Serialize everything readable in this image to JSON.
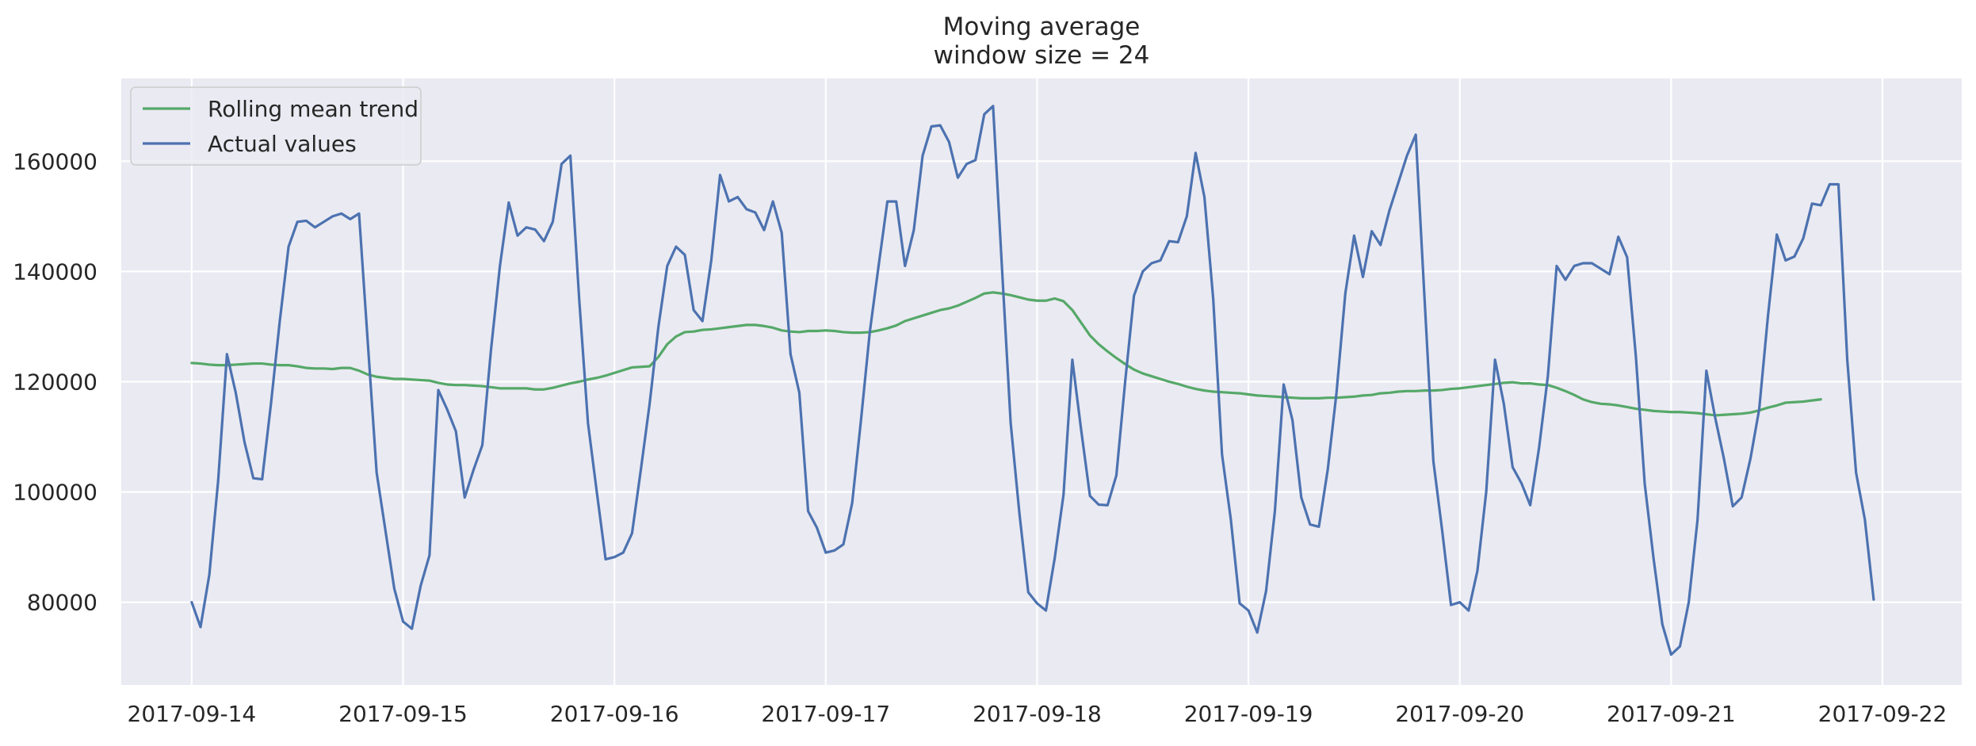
{
  "chart_data": {
    "type": "line",
    "title": "Moving average\n window size = 24",
    "title_lines": [
      "Moving average",
      "window size = 24"
    ],
    "xlabel": "",
    "ylabel": "",
    "x_start": "2017-09-14T00:00",
    "x_step_hours": 1,
    "x_ticks": [
      "2017-09-14",
      "2017-09-15",
      "2017-09-16",
      "2017-09-17",
      "2017-09-18",
      "2017-09-19",
      "2017-09-20",
      "2017-09-21",
      "2017-09-22"
    ],
    "xlim": [
      "2017-09-13T16:00",
      "2017-09-22T09:00"
    ],
    "y_ticks": [
      80000,
      100000,
      120000,
      140000,
      160000
    ],
    "y_tick_labels": [
      "80000",
      "100000",
      "120000",
      "140000",
      "160000"
    ],
    "ylim": [
      65000,
      175000
    ],
    "grid": true,
    "legend_position": "top-left",
    "background": "#eaeaf2",
    "series": [
      {
        "name": "Rolling mean trend",
        "color": "#55a868",
        "values": [
          123400,
          123300,
          123100,
          123000,
          123000,
          123100,
          123200,
          123300,
          123300,
          123100,
          123000,
          123000,
          122800,
          122500,
          122400,
          122400,
          122300,
          122500,
          122500,
          122000,
          121300,
          120900,
          120700,
          120500,
          120500,
          120400,
          120300,
          120200,
          119800,
          119500,
          119400,
          119400,
          119300,
          119200,
          119000,
          118800,
          118800,
          118800,
          118800,
          118600,
          118600,
          118900,
          119300,
          119700,
          120000,
          120400,
          120700,
          121100,
          121600,
          122100,
          122600,
          122700,
          122800,
          124500,
          126800,
          128200,
          129000,
          129100,
          129400,
          129500,
          129700,
          129900,
          130100,
          130300,
          130300,
          130100,
          129800,
          129300,
          129100,
          129000,
          129200,
          129200,
          129300,
          129200,
          129000,
          128900,
          128900,
          129000,
          129300,
          129700,
          130200,
          131000,
          131500,
          132000,
          132500,
          133000,
          133300,
          133800,
          134500,
          135200,
          136000,
          136200,
          136000,
          135700,
          135300,
          134900,
          134700,
          134700,
          135100,
          134600,
          133000,
          130700,
          128400,
          126800,
          125500,
          124300,
          123200,
          122200,
          121500,
          121000,
          120500,
          120000,
          119600,
          119100,
          118700,
          118400,
          118200,
          118100,
          118000,
          117900,
          117700,
          117500,
          117400,
          117300,
          117200,
          117100,
          117000,
          117000,
          117000,
          117100,
          117100,
          117200,
          117300,
          117500,
          117600,
          117900,
          118000,
          118200,
          118300,
          118300,
          118400,
          118400,
          118500,
          118700,
          118800,
          119000,
          119200,
          119400,
          119600,
          119800,
          119900,
          119700,
          119700,
          119500,
          119400,
          118900,
          118300,
          117600,
          116800,
          116300,
          116000,
          115900,
          115700,
          115400,
          115100,
          114900,
          114700,
          114600,
          114500,
          114500,
          114400,
          114300,
          114100,
          113900,
          114000,
          114100,
          114200,
          114400,
          114800,
          115300,
          115700,
          116200,
          116300,
          116400,
          116600,
          116800
        ]
      },
      {
        "name": "Actual values",
        "color": "#4c72b0",
        "values": [
          80000,
          75500,
          85000,
          102000,
          125000,
          118000,
          109000,
          102500,
          102300,
          116000,
          131000,
          144500,
          149000,
          149200,
          148000,
          149000,
          150000,
          150500,
          149500,
          150500,
          127000,
          103500,
          93000,
          82500,
          76500,
          75200,
          83000,
          88500,
          118500,
          115000,
          111000,
          99000,
          104000,
          108500,
          126000,
          141000,
          152500,
          146500,
          148000,
          147600,
          145500,
          149000,
          159500,
          161000,
          135000,
          112500,
          100000,
          87800,
          88200,
          89000,
          92500,
          104000,
          116000,
          130000,
          141000,
          144500,
          143000,
          133000,
          131000,
          142000,
          157500,
          152700,
          153500,
          151300,
          150700,
          147500,
          152700,
          147000,
          125000,
          118000,
          96500,
          93500,
          89000,
          89400,
          90500,
          98000,
          113000,
          129000,
          141000,
          152700,
          152700,
          141000,
          147500,
          161000,
          166300,
          166500,
          163500,
          157000,
          159500,
          160200,
          168500,
          170000,
          141000,
          112500,
          96000,
          81800,
          79800,
          78500,
          88000,
          99500,
          124000,
          111300,
          99300,
          97700,
          97600,
          103000,
          120000,
          135600,
          140000,
          141500,
          142000,
          145500,
          145300,
          150000,
          161500,
          153500,
          135000,
          106800,
          95000,
          79800,
          78500,
          74500,
          82000,
          96500,
          119500,
          113000,
          99000,
          94100,
          93700,
          104000,
          118000,
          136000,
          146500,
          139000,
          147300,
          144800,
          151000,
          156000,
          161000,
          164800,
          135000,
          105600,
          93000,
          79500,
          80000,
          78500,
          85700,
          100000,
          124000,
          116000,
          104500,
          101600,
          97600,
          108000,
          121000,
          141000,
          138500,
          141000,
          141500,
          141500,
          140500,
          139500,
          146300,
          142600,
          124500,
          101500,
          88000,
          76000,
          70500,
          72000,
          80000,
          95000,
          122000,
          113500,
          106000,
          97400,
          99000,
          106000,
          115000,
          132000,
          146700,
          142000,
          142700,
          146000,
          152300,
          152000,
          155800,
          155800,
          124000,
          103500,
          95000,
          80500
        ]
      }
    ]
  }
}
